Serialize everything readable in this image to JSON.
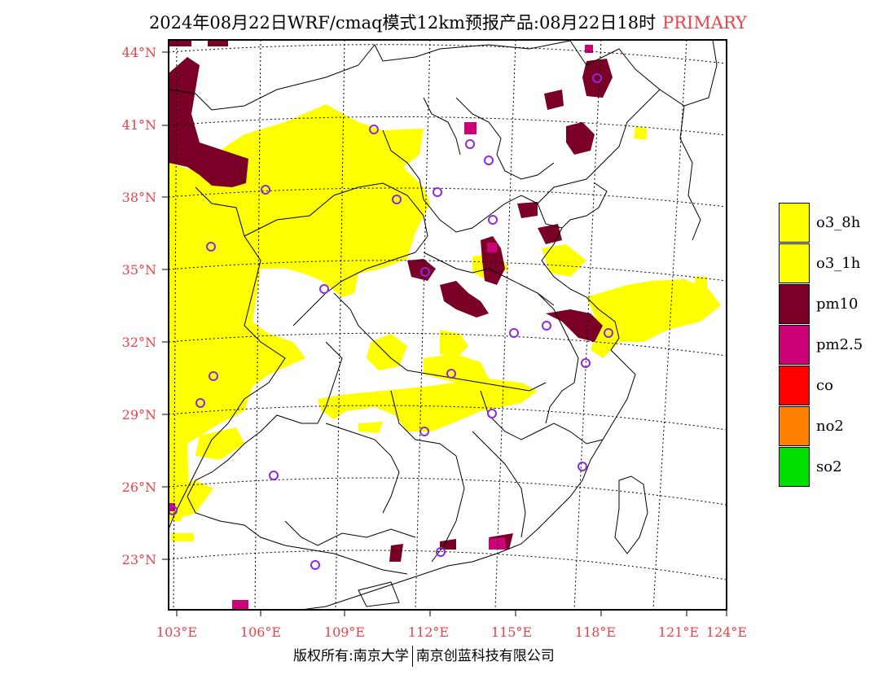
{
  "title": {
    "main": "2024年08月22日WRF/cmaq模式12km预报产品:08月22日18时",
    "tag": "PRIMARY"
  },
  "axes": {
    "lat_labels": [
      "44°N",
      "41°N",
      "38°N",
      "35°N",
      "32°N",
      "29°N",
      "26°N",
      "23°N"
    ],
    "lon_labels": [
      "103°E",
      "106°E",
      "109°E",
      "112°E",
      "115°E",
      "118°E",
      "121°E",
      "124°E"
    ],
    "label_color": "#e8424a"
  },
  "legend": {
    "items": [
      {
        "label": "o3_8h",
        "color": "#ffff00"
      },
      {
        "label": "o3_1h",
        "color": "#ffff00"
      },
      {
        "label": "pm10",
        "color": "#7a0028"
      },
      {
        "label": "pm2.5",
        "color": "#cc0077"
      },
      {
        "label": "co",
        "color": "#ff0000"
      },
      {
        "label": "no2",
        "color": "#ff7f00"
      },
      {
        "label": "so2",
        "color": "#00e000"
      }
    ]
  },
  "footer": {
    "left": "版权所有:南京大学",
    "right": "南京创蓝科技有限公司"
  },
  "station_marker_color": "#8a2be2"
}
